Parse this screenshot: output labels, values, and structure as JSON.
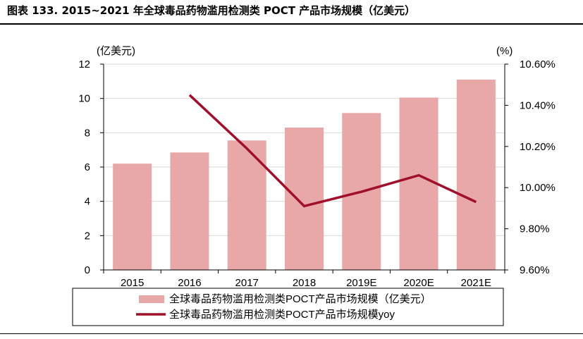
{
  "figure_title": "图表 133. 2015~2021 年全球毒品药物滥用检测类 POCT 产品市场规模（亿美元）",
  "chart_data": {
    "type": "bar",
    "categories": [
      "2015",
      "2016",
      "2017",
      "2018",
      "2019E",
      "2020E",
      "2021E"
    ],
    "series": [
      {
        "name": "全球毒品药物滥用检测类POCT产品市场规模（亿美元）",
        "type": "bar",
        "axis": "left",
        "color": "#e8a8a8",
        "values": [
          6.2,
          6.85,
          7.55,
          8.3,
          9.15,
          10.05,
          11.1
        ]
      },
      {
        "name": "全球毒品药物滥用检测类POCT产品市场规模yoy",
        "type": "line",
        "axis": "right",
        "color": "#a0102a",
        "values": [
          null,
          10.45,
          10.19,
          9.91,
          9.98,
          10.06,
          9.93
        ]
      }
    ],
    "y_left": {
      "unit_label": "(亿美元)",
      "min": 0,
      "max": 12,
      "step": 2,
      "tick_labels": [
        "0",
        "2",
        "4",
        "6",
        "8",
        "10",
        "12"
      ]
    },
    "y_right": {
      "unit_label": "(%)",
      "min": 9.6,
      "max": 10.6,
      "step": 0.2,
      "tick_labels": [
        "9.60%",
        "9.80%",
        "10.00%",
        "10.20%",
        "10.40%",
        "10.60%"
      ]
    },
    "grid": true,
    "legend_position": "bottom"
  }
}
